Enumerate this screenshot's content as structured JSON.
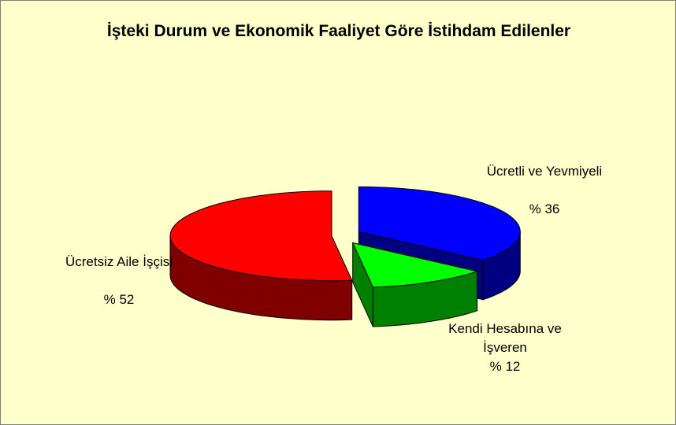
{
  "chart_data": {
    "type": "pie",
    "title": "İşteki Durum ve Ekonomik Faaliyet Göre İstihdam Edilenler",
    "categories": [
      "Ücretli ve Yevmiyeli",
      "Kendi Hesabına ve İşveren",
      "Ücretsiz Aile İşçisi"
    ],
    "values": [
      36,
      12,
      52
    ],
    "value_labels": [
      "% 36",
      "% 12",
      "% 52"
    ],
    "colors": [
      "#0000ff",
      "#00ff00",
      "#ff0000"
    ],
    "side_colors": [
      "#000080",
      "#008000",
      "#800000"
    ]
  }
}
